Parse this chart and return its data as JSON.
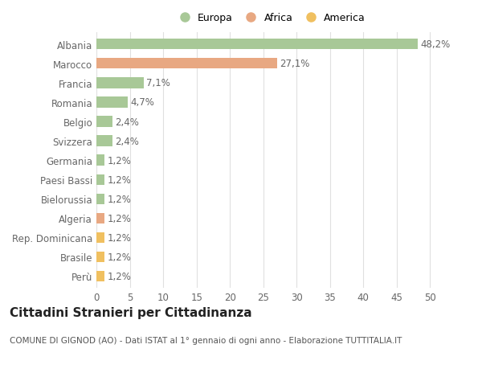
{
  "categories": [
    "Albania",
    "Marocco",
    "Francia",
    "Romania",
    "Belgio",
    "Svizzera",
    "Germania",
    "Paesi Bassi",
    "Bielorussia",
    "Algeria",
    "Rep. Dominicana",
    "Brasile",
    "Perù"
  ],
  "values": [
    48.2,
    27.1,
    7.1,
    4.7,
    2.4,
    2.4,
    1.2,
    1.2,
    1.2,
    1.2,
    1.2,
    1.2,
    1.2
  ],
  "labels": [
    "48,2%",
    "27,1%",
    "7,1%",
    "4,7%",
    "2,4%",
    "2,4%",
    "1,2%",
    "1,2%",
    "1,2%",
    "1,2%",
    "1,2%",
    "1,2%",
    "1,2%"
  ],
  "continents": [
    "Europa",
    "Africa",
    "Europa",
    "Europa",
    "Europa",
    "Europa",
    "Europa",
    "Europa",
    "Europa",
    "Africa",
    "America",
    "America",
    "America"
  ],
  "colors": {
    "Europa": "#a8c897",
    "Africa": "#e8a882",
    "America": "#f0c060"
  },
  "xlim": [
    0,
    52
  ],
  "xticks": [
    0,
    5,
    10,
    15,
    20,
    25,
    30,
    35,
    40,
    45,
    50
  ],
  "title": "Cittadini Stranieri per Cittadinanza",
  "subtitle": "COMUNE DI GIGNOD (AO) - Dati ISTAT al 1° gennaio di ogni anno - Elaborazione TUTTITALIA.IT",
  "background_color": "#ffffff",
  "grid_color": "#e0e0e0",
  "bar_height": 0.55,
  "label_fontsize": 8.5,
  "tick_fontsize": 8.5,
  "title_fontsize": 11,
  "subtitle_fontsize": 7.5
}
